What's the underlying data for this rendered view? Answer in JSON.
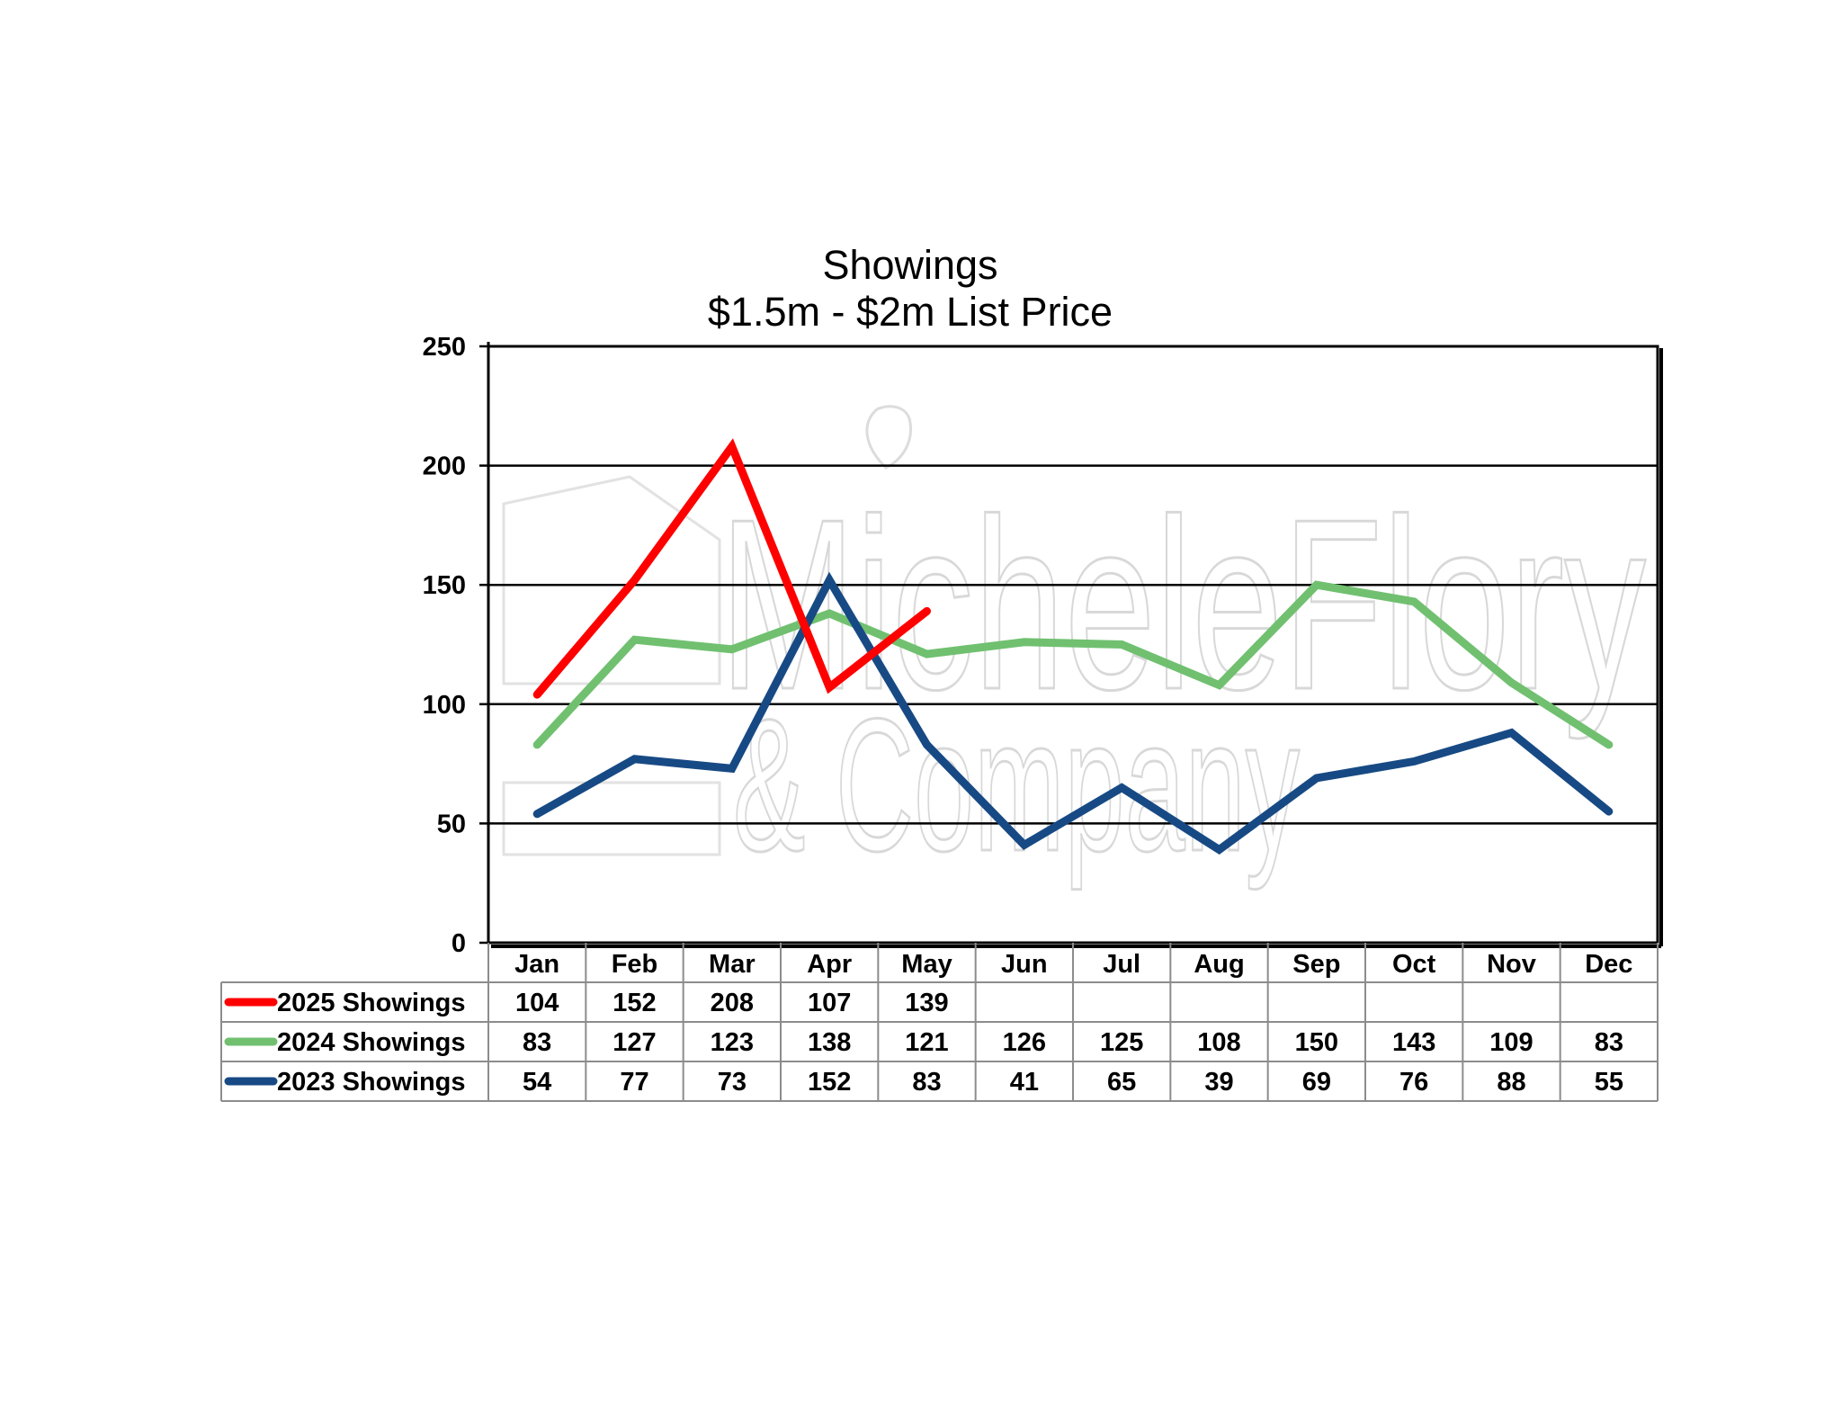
{
  "chart_data": {
    "type": "line",
    "title": "Showings",
    "subtitle": "$1.5m - $2m List Price",
    "categories": [
      "Jan",
      "Feb",
      "Mar",
      "Apr",
      "May",
      "Jun",
      "Jul",
      "Aug",
      "Sep",
      "Oct",
      "Nov",
      "Dec"
    ],
    "ylim": [
      0,
      250
    ],
    "yticks": [
      0,
      50,
      100,
      150,
      200,
      250
    ],
    "grid": true,
    "legend": "data-table-below",
    "series": [
      {
        "name": "2025 Showings",
        "color": "#ff0000",
        "values": [
          104,
          152,
          208,
          107,
          139,
          null,
          null,
          null,
          null,
          null,
          null,
          null
        ]
      },
      {
        "name": "2024 Showings",
        "color": "#70c070",
        "values": [
          83,
          127,
          123,
          138,
          121,
          126,
          125,
          108,
          150,
          143,
          109,
          83
        ]
      },
      {
        "name": "2023 Showings",
        "color": "#174a84",
        "values": [
          54,
          77,
          73,
          152,
          83,
          41,
          65,
          39,
          69,
          76,
          88,
          55
        ]
      }
    ]
  },
  "watermark": {
    "line1": "MicheleFlory",
    "line2": "& Company"
  }
}
